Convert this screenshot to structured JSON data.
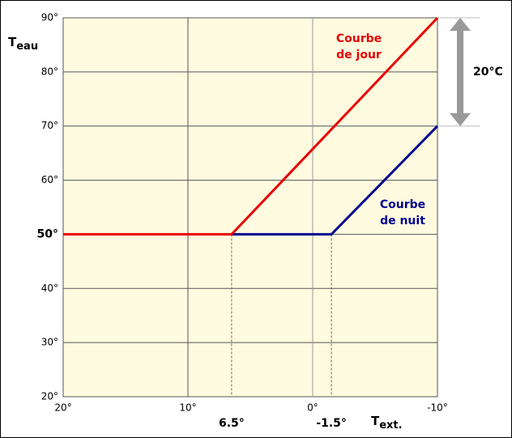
{
  "chart_data": {
    "type": "line",
    "ylabel": {
      "main": "T",
      "sub": "eau"
    },
    "xlabel": {
      "main": "T",
      "sub": "ext."
    },
    "xlim": [
      20,
      -10
    ],
    "ylim": [
      20,
      90
    ],
    "xticks": [
      {
        "value": 20,
        "label": "20°"
      },
      {
        "value": 10,
        "label": "10°"
      },
      {
        "value": 0,
        "label": "0°"
      },
      {
        "value": -10,
        "label": "-10°"
      }
    ],
    "xmarks": [
      {
        "value": 6.5,
        "label": "6.5°"
      },
      {
        "value": -1.5,
        "label": "-1.5°"
      }
    ],
    "yticks": [
      {
        "value": 20,
        "label": "20°"
      },
      {
        "value": 30,
        "label": "30°"
      },
      {
        "value": 40,
        "label": "40°"
      },
      {
        "value": 50,
        "label": "50°",
        "bold": true
      },
      {
        "value": 60,
        "label": "60°"
      },
      {
        "value": 70,
        "label": "70°"
      },
      {
        "value": 80,
        "label": "80°"
      },
      {
        "value": 90,
        "label": "90°"
      }
    ],
    "grid": true,
    "series": [
      {
        "label": [
          "Courbe",
          "de jour"
        ],
        "color": "#e80000",
        "x": [
          20,
          6.5,
          -10
        ],
        "values": [
          50,
          50,
          90
        ]
      },
      {
        "label": [
          "Courbe",
          "de nuit"
        ],
        "color": "#000090",
        "x": [
          6.5,
          -1.5,
          -10
        ],
        "values": [
          50,
          50,
          70
        ]
      }
    ],
    "annotations": [
      {
        "text": "20°C",
        "from": 90,
        "to": 70
      }
    ]
  }
}
